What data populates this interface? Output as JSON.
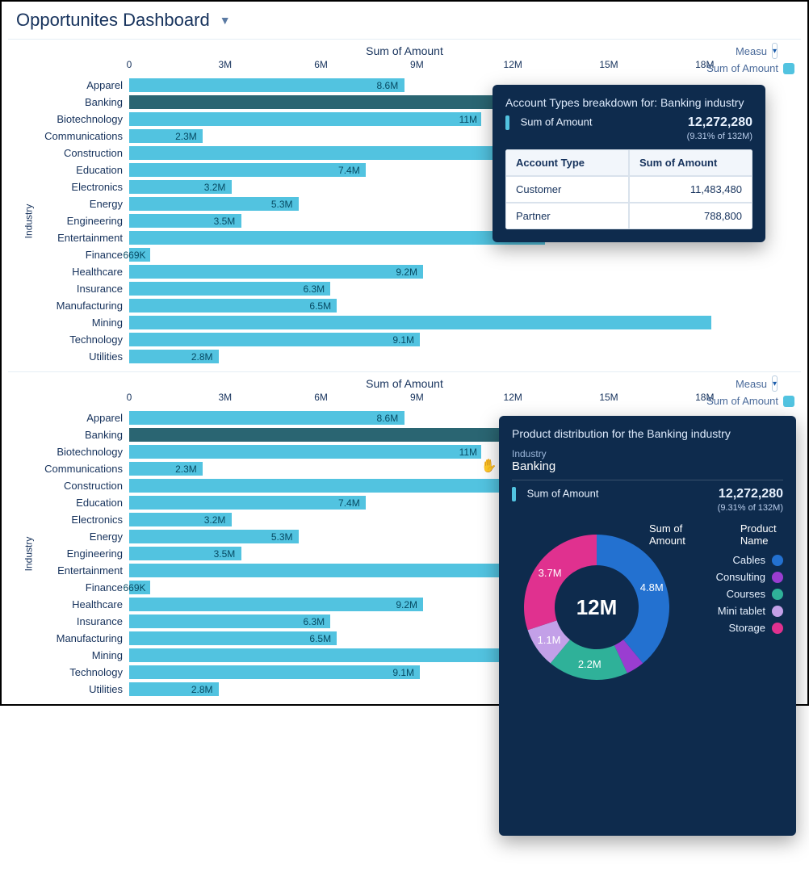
{
  "header": {
    "title": "Opportunites Dashboard"
  },
  "chart": {
    "type": "bar",
    "title": "Sum of Amount",
    "ylabel": "Industry",
    "x_max_m": 20,
    "x_ticks": [
      {
        "v": 0,
        "label": "0"
      },
      {
        "v": 3,
        "label": "3M"
      },
      {
        "v": 6,
        "label": "6M"
      },
      {
        "v": 9,
        "label": "9M"
      },
      {
        "v": 12,
        "label": "12M"
      },
      {
        "v": 15,
        "label": "15M"
      },
      {
        "v": 18,
        "label": "18M"
      }
    ],
    "bar_color": "#52c3e0",
    "bar_color_selected": "#2a6572",
    "legend_measure_label": "Measu",
    "legend_series_label": "Sum of Amount",
    "rows": [
      {
        "cat": "Apparel",
        "value_m": 8.6,
        "label": "8.6M"
      },
      {
        "cat": "Banking",
        "value_m": 12.27,
        "label": "12M",
        "selected": true
      },
      {
        "cat": "Biotechnology",
        "value_m": 11,
        "label": "11M"
      },
      {
        "cat": "Communications",
        "value_m": 2.3,
        "label": "2.3M"
      },
      {
        "cat": "Construction",
        "value_m": 18.8,
        "label": ""
      },
      {
        "cat": "Education",
        "value_m": 7.4,
        "label": "7.4M"
      },
      {
        "cat": "Electronics",
        "value_m": 3.2,
        "label": "3.2M"
      },
      {
        "cat": "Energy",
        "value_m": 5.3,
        "label": "5.3M"
      },
      {
        "cat": "Engineering",
        "value_m": 3.5,
        "label": "3.5M"
      },
      {
        "cat": "Entertainment",
        "value_m": 13,
        "label": "13M"
      },
      {
        "cat": "Finance",
        "value_m": 0.669,
        "label": "669K"
      },
      {
        "cat": "Healthcare",
        "value_m": 9.2,
        "label": "9.2M"
      },
      {
        "cat": "Insurance",
        "value_m": 6.3,
        "label": "6.3M"
      },
      {
        "cat": "Manufacturing",
        "value_m": 6.5,
        "label": "6.5M"
      },
      {
        "cat": "Mining",
        "value_m": 18.2,
        "label": ""
      },
      {
        "cat": "Technology",
        "value_m": 9.1,
        "label": "9.1M"
      },
      {
        "cat": "Utilities",
        "value_m": 2.8,
        "label": "2.8M"
      }
    ]
  },
  "tooltip1": {
    "title": "Account Types breakdown for:  Banking industry",
    "accent": "#52c3e0",
    "sum_label": "Sum of Amount",
    "sum_value": "12,272,280",
    "sub": "(9.31% of 132M)",
    "table": {
      "col1": "Account Type",
      "col2": "Sum of Amount",
      "rows": [
        {
          "k": "Customer",
          "v": "11,483,480"
        },
        {
          "k": "Partner",
          "v": "788,800"
        }
      ]
    }
  },
  "tooltip2": {
    "title": "Product distribution for the Banking industry",
    "accent": "#52c3e0",
    "industry_label": "Industry",
    "industry_value": "Banking",
    "sum_label": "Sum of Amount",
    "sum_value": "12,272,280",
    "sub": "(9.31% of 132M)",
    "donut": {
      "center_label": "12M",
      "title_left": "Sum of Amount",
      "title_right": "Product Name",
      "slices": [
        {
          "name": "Cables",
          "value_m": 4.8,
          "label": "4.8M",
          "color": "#2371d0"
        },
        {
          "name": "Consulting",
          "value_m": 0.5,
          "label": "",
          "color": "#9a3dd1"
        },
        {
          "name": "Courses",
          "value_m": 2.2,
          "label": "2.2M",
          "color": "#2fb199"
        },
        {
          "name": "Mini tablet",
          "value_m": 1.1,
          "label": "1.1M",
          "color": "#c3a0e8"
        },
        {
          "name": "Storage",
          "value_m": 3.7,
          "label": "3.7M",
          "color": "#e0318f"
        }
      ]
    }
  },
  "cursor_rows": {
    "panel1": 1,
    "panel2": 2
  }
}
